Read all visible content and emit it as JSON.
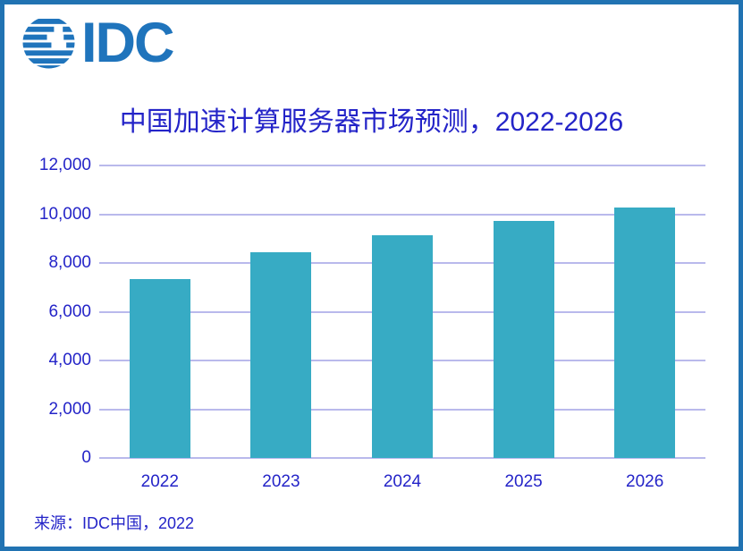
{
  "brand": {
    "logo_text": "IDC",
    "globe_icon": "idc-striped-globe"
  },
  "source": "来源：IDC中国，2022",
  "colors": {
    "border": "#2173B2",
    "logo": "#1F74BC",
    "text": "#2424C8",
    "grid": "#B9B9EC",
    "bar": "#37ABC4"
  },
  "chart_data": {
    "type": "bar",
    "title": "中国加速计算服务器市场预测，2022-2026",
    "categories": [
      "2022",
      "2023",
      "2024",
      "2025",
      "2026"
    ],
    "values": [
      7330,
      8440,
      9140,
      9740,
      10290
    ],
    "xlabel": "",
    "ylabel": "",
    "ylim": [
      0,
      12000
    ],
    "ytick_step": 2000,
    "ytick_labels": [
      "0",
      "2,000",
      "4,000",
      "6,000",
      "8,000",
      "10,000",
      "12,000"
    ],
    "grid": true,
    "legend": "none",
    "bar_color": "#37ABC4"
  }
}
